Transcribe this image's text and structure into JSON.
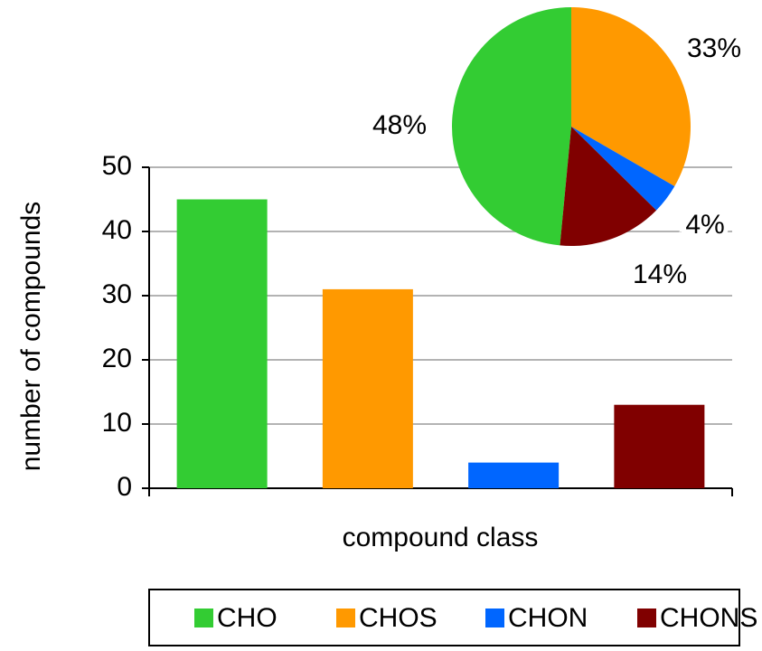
{
  "chart_data": [
    {
      "type": "bar",
      "x_label": "compound class",
      "y_label": "number of compounds",
      "categories": [
        "CHO",
        "CHOS",
        "CHON",
        "CHONS"
      ],
      "values": [
        45,
        31,
        4,
        13
      ],
      "colors": [
        "#33cc33",
        "#ff9900",
        "#0066ff",
        "#800000"
      ],
      "ylim": [
        0,
        50
      ],
      "yticks": [
        0,
        10,
        20,
        30,
        40,
        50
      ],
      "grid": true,
      "legend": "bottom"
    },
    {
      "type": "pie",
      "categories": [
        "CHO",
        "CHOS",
        "CHON",
        "CHONS"
      ],
      "values": [
        48,
        33,
        4,
        14
      ],
      "value_labels": [
        "48%",
        "33%",
        "4%",
        "14%"
      ],
      "colors": [
        "#33cc33",
        "#ff9900",
        "#0066ff",
        "#800000"
      ]
    }
  ]
}
